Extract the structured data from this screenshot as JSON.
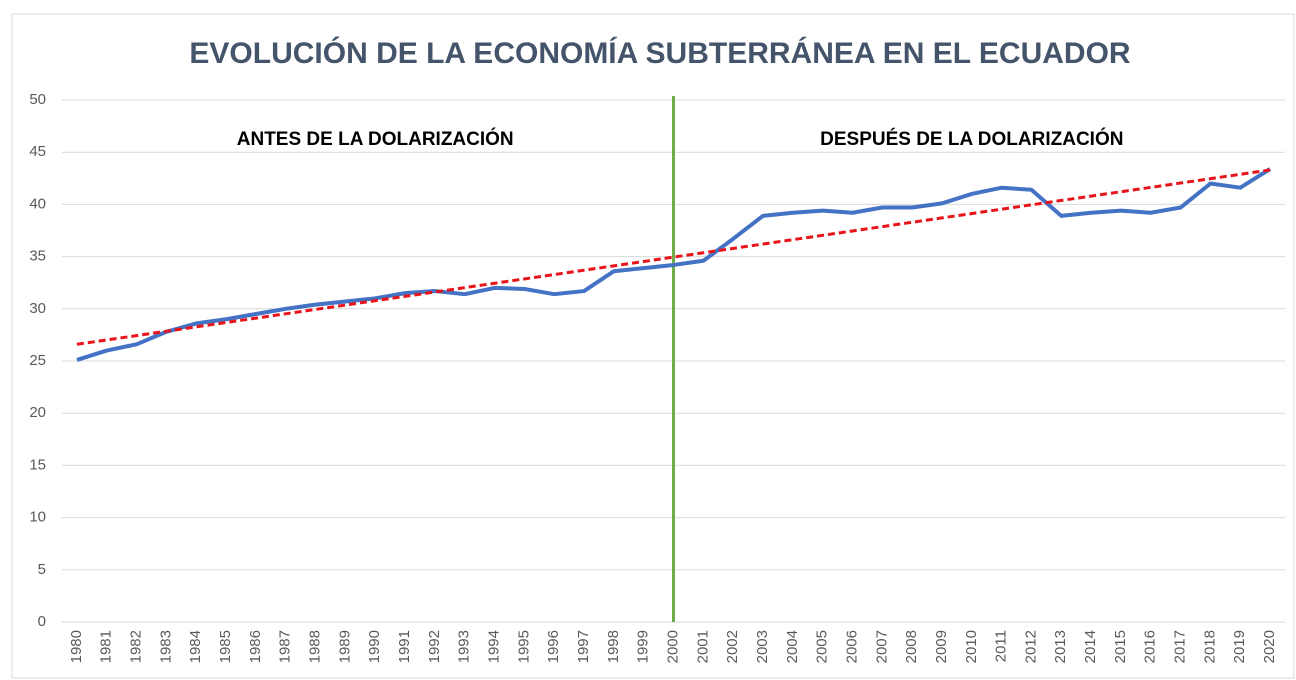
{
  "chart_data": {
    "type": "line",
    "title": "EVOLUCIÓN DE LA ECONOMÍA SUBTERRÁNEA EN EL ECUADOR",
    "categories": [
      "1980",
      "1981",
      "1982",
      "1983",
      "1984",
      "1985",
      "1986",
      "1987",
      "1988",
      "1989",
      "1990",
      "1991",
      "1992",
      "1993",
      "1994",
      "1995",
      "1996",
      "1997",
      "1998",
      "1999",
      "2000",
      "2001",
      "2002",
      "2003",
      "2004",
      "2005",
      "2006",
      "2007",
      "2008",
      "2009",
      "2010",
      "2011",
      "2012",
      "2013",
      "2014",
      "2015",
      "2016",
      "2017",
      "2018",
      "2019",
      "2020"
    ],
    "series": [
      {
        "color": "#4472c4",
        "values": [
          25.1,
          26.0,
          26.6,
          27.8,
          28.6,
          29.0,
          29.5,
          30.0,
          30.4,
          30.7,
          31.0,
          31.5,
          31.7,
          31.4,
          32.0,
          31.9,
          31.4,
          31.7,
          33.6,
          33.9,
          34.2,
          34.6,
          36.7,
          38.9,
          39.2,
          39.4,
          39.2,
          39.7,
          39.7,
          40.1,
          41.0,
          41.6,
          41.4,
          38.9,
          39.2,
          39.4,
          39.2,
          39.7,
          42.0,
          41.6,
          43.4
        ]
      }
    ],
    "trendline": {
      "color": "#e8141a",
      "values": [
        26.6,
        43.3
      ]
    },
    "vline": {
      "at": "2000",
      "color": "#70ad47"
    },
    "annotations": [
      {
        "text": "ANTES DE LA DOLARIZACIÓN",
        "category": "1990",
        "y": 45
      },
      {
        "text": "DESPUÉS DE LA DOLARIZACIÓN",
        "category": "2010",
        "y": 45
      }
    ],
    "ylim": [
      0,
      50
    ],
    "yticks": [
      0,
      5,
      10,
      15,
      20,
      25,
      30,
      35,
      40,
      45,
      50
    ],
    "grid": true
  }
}
